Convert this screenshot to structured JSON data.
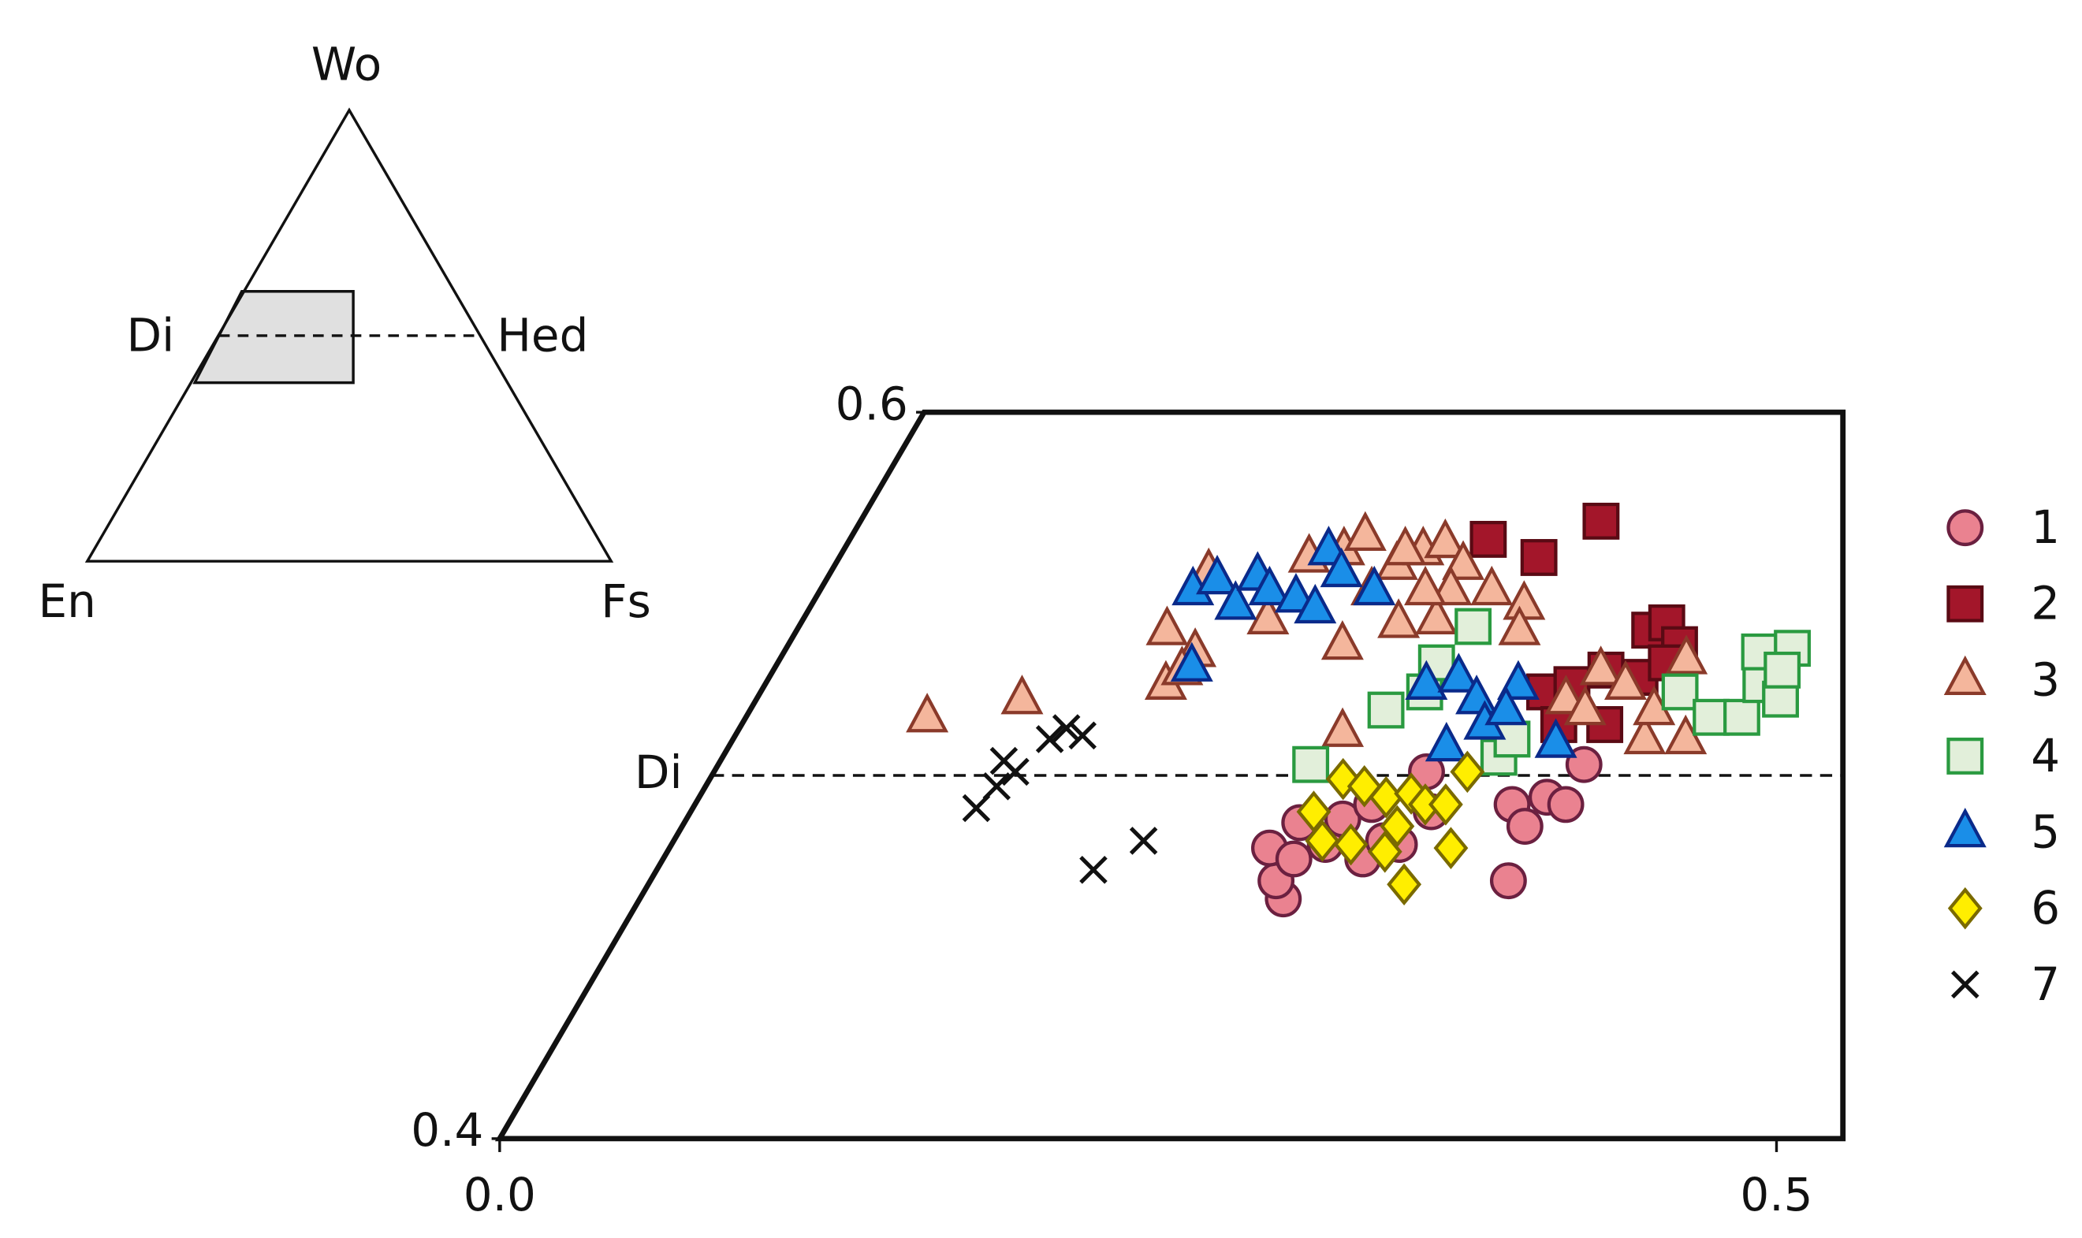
{
  "chart_data": {
    "type": "scatter",
    "xlim": [
      0,
      0.526
    ],
    "ylim": [
      0.4,
      0.6
    ],
    "xticks": [
      {
        "value": 0,
        "label": "0.0"
      },
      0.5
    ],
    "yticks": [
      0.4,
      0.6
    ],
    "reference_line": {
      "value": 0.5,
      "label": "Di"
    },
    "inset_labels": {
      "top": "Wo",
      "left": "En",
      "right": "Fs",
      "mid_left": "Di",
      "mid_right": "Hed"
    },
    "series": [
      {
        "name": "1",
        "marker": "circle",
        "color": "#ea8290",
        "edge": "#6b2040",
        "x": [
          0.252,
          0.245,
          0.235,
          0.247,
          0.241,
          0.256,
          0.257,
          0.274,
          0.278,
          0.279,
          0.29,
          0.336,
          0.32,
          0.33,
          0.332,
          0.341,
          0.339,
          0.265,
          0.285
        ],
        "values": [
          0.466,
          0.471,
          0.48,
          0.477,
          0.487,
          0.481,
          0.488,
          0.477,
          0.482,
          0.501,
          0.49,
          0.471,
          0.492,
          0.486,
          0.494,
          0.492,
          0.503,
          0.492,
          0.481
        ]
      },
      {
        "name": "2",
        "marker": "square",
        "color": "#a3162a",
        "edge": "#5a0a14",
        "x": [
          0.25,
          0.274,
          0.29,
          0.334,
          0.339,
          0.349,
          0.307,
          0.316,
          0.326,
          0.341,
          0.348,
          0.32,
          0.338
        ],
        "values": [
          0.565,
          0.56,
          0.57,
          0.54,
          0.542,
          0.536,
          0.523,
          0.525,
          0.529,
          0.527,
          0.531,
          0.514,
          0.514
        ]
      },
      {
        "name": "3",
        "marker": "triangle",
        "color": "#f4b69c",
        "edge": "#8a3a2a",
        "x": [
          0.071,
          0.104,
          0.145,
          0.157,
          0.161,
          0.16,
          0.148,
          0.182,
          0.184,
          0.196,
          0.201,
          0.22,
          0.227,
          0.234,
          0.246,
          0.263,
          0.279,
          0.283,
          0.217,
          0.234,
          0.248,
          0.216,
          0.247,
          0.237,
          0.317,
          0.324,
          0.337,
          0.357,
          0.373,
          0.355,
          0.327,
          0.354,
          0.22,
          0.237
        ],
        "values": [
          0.516,
          0.521,
          0.54,
          0.525,
          0.534,
          0.529,
          0.556,
          0.543,
          0.56,
          0.562,
          0.566,
          0.558,
          0.562,
          0.564,
          0.558,
          0.551,
          0.547,
          0.54,
          0.536,
          0.542,
          0.543,
          0.551,
          0.551,
          0.512,
          0.521,
          0.529,
          0.525,
          0.51,
          0.51,
          0.532,
          0.518,
          0.518,
          0.562,
          0.551
        ]
      },
      {
        "name": "4",
        "marker": "square",
        "color": "#e2efda",
        "edge": "#2a9a40",
        "x": [
          0.232,
          0.249,
          0.26,
          0.258,
          0.264,
          0.304,
          0.305,
          0.36,
          0.378,
          0.39,
          0.39,
          0.382,
          0.401,
          0.394,
          0.395
        ],
        "values": [
          0.503,
          0.518,
          0.523,
          0.531,
          0.541,
          0.505,
          0.51,
          0.523,
          0.516,
          0.516,
          0.525,
          0.534,
          0.521,
          0.535,
          0.529
        ]
      },
      {
        "name": "5",
        "marker": "triangle",
        "color": "#1a8ee8",
        "edge": "#0a2a8a",
        "x": [
          0.146,
          0.153,
          0.166,
          0.168,
          0.176,
          0.188,
          0.198,
          0.19,
          0.2,
          0.217,
          0.163,
          0.259,
          0.27,
          0.282,
          0.295,
          0.281,
          0.291,
          0.323,
          0.296
        ],
        "values": [
          0.551,
          0.554,
          0.547,
          0.555,
          0.551,
          0.549,
          0.546,
          0.562,
          0.556,
          0.551,
          0.53,
          0.525,
          0.527,
          0.521,
          0.525,
          0.508,
          0.514,
          0.509,
          0.518
        ]
      },
      {
        "name": "6",
        "marker": "diamond",
        "color": "#ffee00",
        "edge": "#7a6a00",
        "x": [
          0.244,
          0.254,
          0.248,
          0.258,
          0.266,
          0.269,
          0.28,
          0.278,
          0.286,
          0.294,
          0.306,
          0.296,
          0.295,
          0.281
        ],
        "values": [
          0.49,
          0.482,
          0.499,
          0.497,
          0.481,
          0.494,
          0.486,
          0.495,
          0.492,
          0.492,
          0.48,
          0.47,
          0.501,
          0.479
        ]
      },
      {
        "name": "7",
        "marker": "x",
        "color": "#111111",
        "edge": "#111111",
        "x": [
          0.111,
          0.114,
          0.111,
          0.118,
          0.124,
          0.128,
          0.136,
          0.171,
          0.184
        ],
        "values": [
          0.491,
          0.497,
          0.504,
          0.501,
          0.51,
          0.513,
          0.511,
          0.474,
          0.482
        ]
      }
    ]
  }
}
